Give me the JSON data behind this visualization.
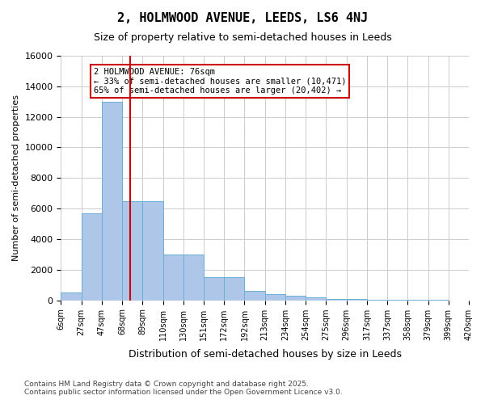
{
  "title": "2, HOLMWOOD AVENUE, LEEDS, LS6 4NJ",
  "subtitle": "Size of property relative to semi-detached houses in Leeds",
  "xlabel": "Distribution of semi-detached houses by size in Leeds",
  "ylabel": "Number of semi-detached properties",
  "property_size": 76,
  "property_label": "2 HOLMWOOD AVENUE: 76sqm",
  "pct_smaller": 33,
  "pct_larger": 65,
  "n_smaller": 10471,
  "n_larger": 20402,
  "annotation_text_smaller": "← 33% of semi-detached houses are smaller (10,471)",
  "annotation_text_larger": "65% of semi-detached houses are larger (20,402) →",
  "bar_color": "#aec6e8",
  "bar_edge_color": "#6aafd6",
  "red_line_color": "#cc0000",
  "annotation_box_color": "#cc0000",
  "grid_color": "#cccccc",
  "background_color": "#ffffff",
  "bins": [
    6,
    27,
    47,
    68,
    89,
    110,
    130,
    151,
    172,
    192,
    213,
    234,
    254,
    275,
    296,
    317,
    337,
    358,
    379,
    399,
    420
  ],
  "bin_labels": [
    "6sqm",
    "27sqm",
    "47sqm",
    "68sqm",
    "89sqm",
    "110sqm",
    "130sqm",
    "151sqm",
    "172sqm",
    "192sqm",
    "213sqm",
    "234sqm",
    "254sqm",
    "275sqm",
    "296sqm",
    "317sqm",
    "337sqm",
    "358sqm",
    "379sqm",
    "399sqm",
    "420sqm"
  ],
  "counts": [
    500,
    5700,
    13000,
    6500,
    6500,
    3000,
    3000,
    1500,
    1500,
    600,
    400,
    300,
    200,
    100,
    100,
    50,
    50,
    20,
    10,
    5
  ],
  "ylim": [
    0,
    16000
  ],
  "yticks": [
    0,
    2000,
    4000,
    6000,
    8000,
    10000,
    12000,
    14000,
    16000
  ],
  "footer_line1": "Contains HM Land Registry data © Crown copyright and database right 2025.",
  "footer_line2": "Contains public sector information licensed under the Open Government Licence v3.0."
}
